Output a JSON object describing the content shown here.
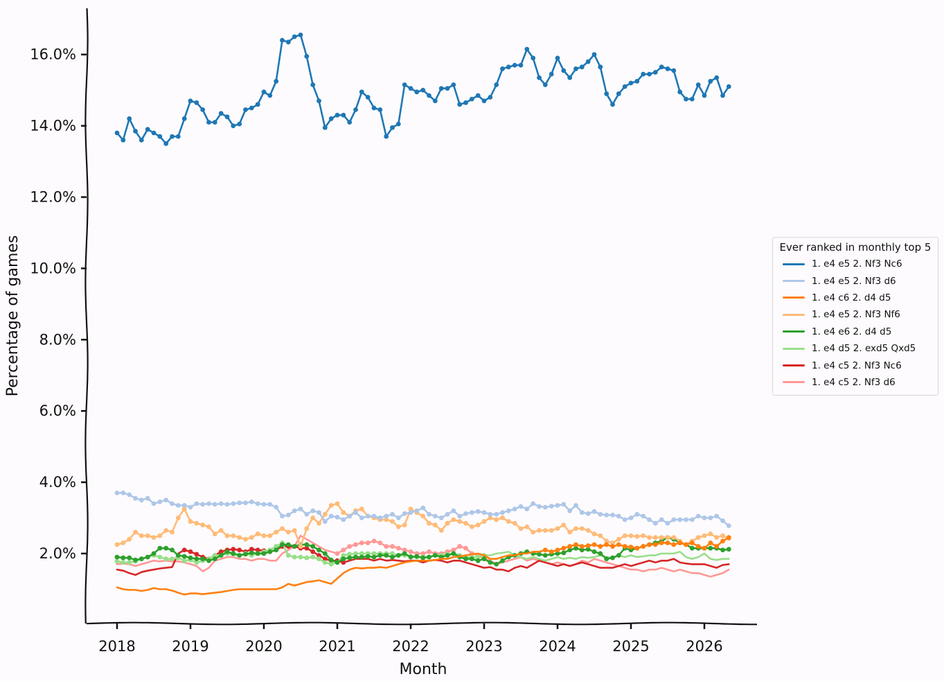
{
  "chart_data": {
    "type": "line",
    "xlabel": "Month",
    "ylabel": "Percentage of games",
    "x_start": "2018-01",
    "x_step": "month",
    "x_ticks": [
      "2018",
      "2019",
      "2020",
      "2021",
      "2022",
      "2023",
      "2024",
      "2025",
      "2026"
    ],
    "y_ticks": [
      "2.0%",
      "4.0%",
      "6.0%",
      "8.0%",
      "10.0%",
      "12.0%",
      "14.0%",
      "16.0%"
    ],
    "ylim": [
      0.2,
      17.6
    ],
    "grid": false,
    "legend_title": "Ever ranked in monthly top 5",
    "legend_position": "center-right",
    "series": [
      {
        "name": "1. e4 e5 2. Nf3 Nc6",
        "color": "#1f77b4",
        "markers": true,
        "values": [
          13.8,
          13.6,
          14.2,
          13.85,
          13.6,
          13.9,
          13.8,
          13.7,
          13.5,
          13.7,
          13.7,
          14.2,
          14.7,
          14.65,
          14.45,
          14.1,
          14.1,
          14.35,
          14.25,
          14.0,
          14.05,
          14.45,
          14.5,
          14.6,
          14.95,
          14.85,
          15.25,
          16.4,
          16.35,
          16.5,
          16.55,
          15.95,
          15.15,
          14.7,
          13.95,
          14.2,
          14.3,
          14.3,
          14.1,
          14.45,
          14.95,
          14.8,
          14.5,
          14.45,
          13.7,
          13.95,
          14.05,
          15.15,
          15.05,
          14.95,
          15.0,
          14.85,
          14.7,
          15.05,
          15.05,
          15.15,
          14.6,
          14.65,
          14.75,
          14.85,
          14.7,
          14.8,
          15.15,
          15.6,
          15.65,
          15.7,
          15.7,
          16.15,
          15.9,
          15.35,
          15.15,
          15.45,
          15.9,
          15.55,
          15.35,
          15.6,
          15.65,
          15.8,
          16.0,
          15.65,
          14.9,
          14.6,
          14.9,
          15.1,
          15.2,
          15.25,
          15.45,
          15.45,
          15.5,
          15.65,
          15.6,
          15.55,
          14.95,
          14.75,
          14.75,
          15.15,
          14.85,
          15.25,
          15.35,
          14.85,
          15.1
        ]
      },
      {
        "name": "1. e4 e5 2. Nf3 d6",
        "color": "#aec7e8",
        "markers": true,
        "values": [
          3.7,
          3.7,
          3.65,
          3.55,
          3.5,
          3.55,
          3.4,
          3.45,
          3.5,
          3.4,
          3.35,
          3.35,
          3.3,
          3.4,
          3.38,
          3.4,
          3.38,
          3.4,
          3.38,
          3.4,
          3.42,
          3.42,
          3.45,
          3.4,
          3.38,
          3.38,
          3.3,
          3.05,
          3.08,
          3.2,
          3.25,
          3.1,
          3.2,
          3.15,
          2.9,
          3.05,
          3.02,
          2.95,
          3.05,
          3.15,
          3.0,
          3.05,
          3.05,
          3.0,
          3.05,
          3.1,
          3.0,
          3.12,
          3.15,
          3.2,
          3.28,
          3.1,
          3.05,
          3.0,
          3.1,
          3.2,
          3.05,
          3.12,
          3.15,
          3.18,
          3.15,
          3.1,
          3.1,
          3.15,
          3.2,
          3.25,
          3.32,
          3.25,
          3.4,
          3.32,
          3.3,
          3.33,
          3.35,
          3.38,
          3.2,
          3.35,
          3.15,
          3.12,
          3.18,
          3.1,
          3.08,
          3.08,
          3.05,
          2.95,
          3.0,
          3.1,
          3.05,
          2.95,
          2.85,
          2.95,
          2.85,
          2.95,
          2.95,
          2.95,
          2.95,
          3.05,
          3.0,
          3.0,
          3.05,
          2.92,
          2.78
        ]
      },
      {
        "name": "1. e4 c6 2. d4 d5",
        "color": "#ff7f0e",
        "markers_from_index": 70,
        "values": [
          1.05,
          1.0,
          0.98,
          0.98,
          0.95,
          0.98,
          1.03,
          1.0,
          1.0,
          0.96,
          0.9,
          0.85,
          0.88,
          0.88,
          0.86,
          0.88,
          0.9,
          0.92,
          0.95,
          0.98,
          1.0,
          1.0,
          1.0,
          1.0,
          1.0,
          1.0,
          1.0,
          1.05,
          1.15,
          1.1,
          1.15,
          1.2,
          1.22,
          1.25,
          1.2,
          1.15,
          1.3,
          1.45,
          1.55,
          1.6,
          1.58,
          1.6,
          1.6,
          1.62,
          1.6,
          1.65,
          1.7,
          1.75,
          1.78,
          1.8,
          1.8,
          1.8,
          1.82,
          1.85,
          1.85,
          1.9,
          1.92,
          1.95,
          1.98,
          2.0,
          1.95,
          1.85,
          1.85,
          1.9,
          1.95,
          1.95,
          2.0,
          2.0,
          2.05,
          2.05,
          2.1,
          2.05,
          2.1,
          2.15,
          2.2,
          2.25,
          2.2,
          2.22,
          2.25,
          2.2,
          2.25,
          2.2,
          2.25,
          2.2,
          2.18,
          2.15,
          2.2,
          2.25,
          2.25,
          2.3,
          2.3,
          2.25,
          2.3,
          2.25,
          2.3,
          2.2,
          2.15,
          2.3,
          2.2,
          2.35,
          2.45
        ]
      },
      {
        "name": "1. e4 e5 2. Nf3 Nf6",
        "color": "#ffbb78",
        "markers": true,
        "values": [
          2.25,
          2.3,
          2.4,
          2.6,
          2.5,
          2.5,
          2.45,
          2.5,
          2.65,
          2.6,
          3.0,
          3.25,
          2.9,
          2.85,
          2.8,
          2.75,
          2.55,
          2.65,
          2.5,
          2.5,
          2.45,
          2.4,
          2.45,
          2.55,
          2.5,
          2.5,
          2.6,
          2.7,
          2.6,
          2.65,
          2.2,
          2.7,
          3.0,
          2.85,
          3.1,
          3.35,
          3.4,
          3.15,
          3.05,
          3.2,
          3.25,
          3.05,
          3.0,
          2.95,
          2.95,
          2.9,
          2.75,
          2.8,
          3.25,
          3.15,
          3.05,
          2.85,
          2.8,
          2.65,
          2.85,
          2.95,
          2.9,
          2.85,
          2.75,
          2.8,
          2.9,
          3.0,
          2.95,
          3.0,
          2.9,
          2.85,
          2.7,
          2.75,
          2.6,
          2.65,
          2.65,
          2.65,
          2.7,
          2.8,
          2.6,
          2.7,
          2.7,
          2.65,
          2.55,
          2.5,
          2.35,
          2.3,
          2.4,
          2.5,
          2.5,
          2.48,
          2.5,
          2.45,
          2.45,
          2.45,
          2.45,
          2.45,
          2.35,
          2.25,
          2.35,
          2.45,
          2.5,
          2.55,
          2.45,
          2.5,
          2.42
        ]
      },
      {
        "name": "1. e4 e6 2. d4 d5",
        "color": "#2ca02c",
        "markers": true,
        "values": [
          1.9,
          1.88,
          1.88,
          1.82,
          1.85,
          1.9,
          2.0,
          2.15,
          2.15,
          2.1,
          1.95,
          1.92,
          1.88,
          1.85,
          1.85,
          1.8,
          1.85,
          1.95,
          2.05,
          2.0,
          1.95,
          1.98,
          2.02,
          2.0,
          2.0,
          2.05,
          2.1,
          2.25,
          2.25,
          2.2,
          2.25,
          2.25,
          2.2,
          2.1,
          2.0,
          1.82,
          1.75,
          1.85,
          1.88,
          1.9,
          1.9,
          1.92,
          1.9,
          1.95,
          1.95,
          1.9,
          1.95,
          2.0,
          1.9,
          1.92,
          1.88,
          1.9,
          1.95,
          1.9,
          1.95,
          2.0,
          1.9,
          1.85,
          1.85,
          1.8,
          1.85,
          1.75,
          1.7,
          1.8,
          1.9,
          1.95,
          2.0,
          2.05,
          2.0,
          1.98,
          1.95,
          1.98,
          2.0,
          2.02,
          2.1,
          2.15,
          2.1,
          2.12,
          2.05,
          2.0,
          1.85,
          1.88,
          1.95,
          2.15,
          2.1,
          2.15,
          2.2,
          2.25,
          2.3,
          2.35,
          2.45,
          2.4,
          2.3,
          2.25,
          2.15,
          2.15,
          2.15,
          2.15,
          2.15,
          2.1,
          2.12
        ]
      },
      {
        "name": "1. e4 d5 2. exd5 Qxd5",
        "color": "#98df8a",
        "markers_until_index": 60,
        "values": [
          1.78,
          1.75,
          1.75,
          1.78,
          1.85,
          1.9,
          1.95,
          1.9,
          1.85,
          1.85,
          1.88,
          1.8,
          1.82,
          1.75,
          1.8,
          1.85,
          1.95,
          1.95,
          2.0,
          1.98,
          1.95,
          2.0,
          1.95,
          2.0,
          2.05,
          2.1,
          2.2,
          2.3,
          1.95,
          1.9,
          1.9,
          1.88,
          1.9,
          1.85,
          1.75,
          1.7,
          1.75,
          1.95,
          1.98,
          2.0,
          2.0,
          2.0,
          2.0,
          2.0,
          2.0,
          2.0,
          1.95,
          1.95,
          1.92,
          1.9,
          1.9,
          1.9,
          1.95,
          1.95,
          1.98,
          2.0,
          1.95,
          1.9,
          1.9,
          1.9,
          1.95,
          1.95,
          2.0,
          2.02,
          2.05,
          1.95,
          1.9,
          1.85,
          1.9,
          1.85,
          1.8,
          1.85,
          1.9,
          1.85,
          1.88,
          1.85,
          1.9,
          1.88,
          1.9,
          1.95,
          1.9,
          1.88,
          1.95,
          1.9,
          1.95,
          1.9,
          1.92,
          1.95,
          1.95,
          2.0,
          2.0,
          2.0,
          2.05,
          1.9,
          1.85,
          1.9,
          2.0,
          1.85,
          1.82,
          1.85,
          1.85
        ]
      },
      {
        "name": "1. e4 c5 2. Nf3 Nc6",
        "color": "#d62728",
        "markers_from_index": 11,
        "markers_until_index": 37,
        "values": [
          1.55,
          1.52,
          1.45,
          1.4,
          1.48,
          1.52,
          1.55,
          1.58,
          1.6,
          1.62,
          2.0,
          2.1,
          2.05,
          1.98,
          1.9,
          1.85,
          1.95,
          2.05,
          2.1,
          2.12,
          2.1,
          2.05,
          2.12,
          2.1,
          2.08,
          2.05,
          2.1,
          2.2,
          2.2,
          2.2,
          2.15,
          2.15,
          2.05,
          1.95,
          1.85,
          1.8,
          1.8,
          1.75,
          1.8,
          1.85,
          1.85,
          1.85,
          1.8,
          1.85,
          1.8,
          1.82,
          1.8,
          1.78,
          1.8,
          1.8,
          1.75,
          1.8,
          1.82,
          1.8,
          1.75,
          1.8,
          1.8,
          1.75,
          1.7,
          1.65,
          1.6,
          1.62,
          1.55,
          1.55,
          1.5,
          1.6,
          1.65,
          1.6,
          1.7,
          1.8,
          1.75,
          1.7,
          1.65,
          1.7,
          1.65,
          1.7,
          1.75,
          1.7,
          1.65,
          1.6,
          1.6,
          1.6,
          1.65,
          1.7,
          1.65,
          1.7,
          1.75,
          1.8,
          1.75,
          1.8,
          1.8,
          1.85,
          1.75,
          1.72,
          1.7,
          1.7,
          1.7,
          1.65,
          1.6,
          1.68,
          1.7
        ]
      },
      {
        "name": "1. e4 c5 2. Nf3 d6",
        "color": "#ff9896",
        "markers_from_index": 36,
        "markers_until_index": 60,
        "values": [
          1.7,
          1.72,
          1.7,
          1.65,
          1.7,
          1.75,
          1.8,
          1.78,
          1.8,
          1.78,
          1.78,
          1.75,
          1.7,
          1.65,
          1.5,
          1.6,
          1.8,
          1.85,
          1.9,
          1.9,
          1.85,
          1.85,
          1.8,
          1.85,
          1.85,
          1.8,
          1.8,
          2.0,
          2.1,
          2.2,
          2.5,
          2.4,
          2.3,
          2.2,
          2.1,
          2.05,
          2.0,
          2.1,
          2.2,
          2.25,
          2.3,
          2.3,
          2.35,
          2.3,
          2.2,
          2.2,
          2.15,
          2.1,
          2.05,
          2.0,
          2.0,
          2.05,
          2.0,
          2.0,
          2.05,
          2.1,
          2.2,
          2.15,
          2.0,
          1.95,
          1.85,
          1.8,
          1.7,
          1.75,
          1.8,
          1.85,
          1.9,
          1.8,
          1.85,
          1.8,
          1.75,
          1.7,
          1.75,
          1.7,
          1.65,
          1.7,
          1.8,
          1.75,
          1.85,
          1.8,
          1.75,
          1.7,
          1.65,
          1.6,
          1.55,
          1.55,
          1.5,
          1.55,
          1.55,
          1.6,
          1.55,
          1.5,
          1.55,
          1.5,
          1.45,
          1.45,
          1.4,
          1.35,
          1.4,
          1.45,
          1.55
        ]
      }
    ]
  }
}
